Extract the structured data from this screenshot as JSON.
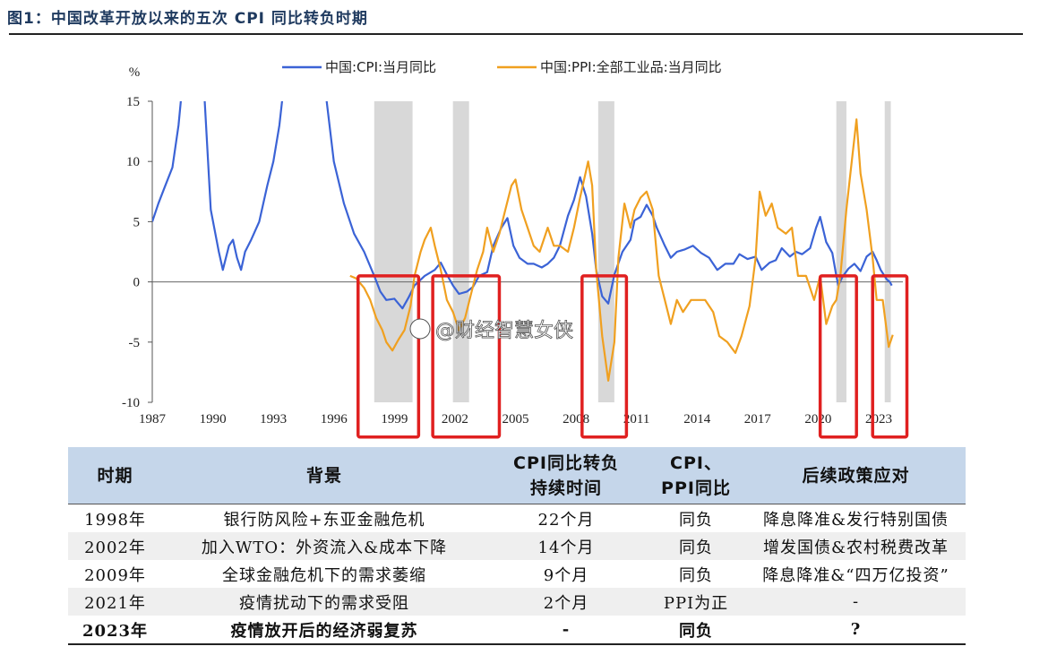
{
  "figure": {
    "title": "图1：中国改革开放以来的五次 CPI 同比转负时期"
  },
  "watermark": "@财经智慧女侠",
  "chart_data": {
    "type": "line",
    "ylabel": "%",
    "ylim": [
      -10,
      15
    ],
    "yticks": [
      15,
      10,
      5,
      0,
      -5,
      -10
    ],
    "xlim": [
      1987,
      2024.2
    ],
    "xticks": [
      1987,
      1990,
      1993,
      1996,
      1999,
      2002,
      2005,
      2008,
      2011,
      2014,
      2017,
      2020,
      2023
    ],
    "legend_position": "top-center",
    "series": [
      {
        "name": "中国:CPI:当月同比",
        "color": "#3b63d6",
        "points": [
          [
            1987.0,
            5.0
          ],
          [
            1987.3,
            6.5
          ],
          [
            1987.6,
            7.8
          ],
          [
            1988.0,
            9.5
          ],
          [
            1988.3,
            13.0
          ],
          [
            1988.5,
            16.5
          ],
          [
            1989.0,
            27.0
          ],
          [
            1989.5,
            18.0
          ],
          [
            1989.9,
            6.0
          ],
          [
            1990.3,
            2.5
          ],
          [
            1990.5,
            1.0
          ],
          [
            1990.8,
            3.0
          ],
          [
            1991.0,
            3.5
          ],
          [
            1991.2,
            2.0
          ],
          [
            1991.4,
            1.0
          ],
          [
            1991.6,
            2.5
          ],
          [
            1991.9,
            3.5
          ],
          [
            1992.3,
            5.0
          ],
          [
            1992.7,
            8.0
          ],
          [
            1993.0,
            10.0
          ],
          [
            1993.3,
            13.0
          ],
          [
            1993.5,
            16.0
          ],
          [
            1994.0,
            22.0
          ],
          [
            1994.8,
            27.5
          ],
          [
            1995.5,
            17.0
          ],
          [
            1996.0,
            10.0
          ],
          [
            1996.5,
            6.5
          ],
          [
            1997.0,
            4.0
          ],
          [
            1997.5,
            2.5
          ],
          [
            1998.0,
            0.5
          ],
          [
            1998.3,
            -0.8
          ],
          [
            1998.6,
            -1.5
          ],
          [
            1999.0,
            -1.4
          ],
          [
            1999.4,
            -2.2
          ],
          [
            1999.7,
            -1.3
          ],
          [
            2000.0,
            -0.3
          ],
          [
            2000.5,
            0.5
          ],
          [
            2001.0,
            1.0
          ],
          [
            2001.3,
            1.6
          ],
          [
            2001.6,
            0.6
          ],
          [
            2001.9,
            -0.3
          ],
          [
            2002.2,
            -1.0
          ],
          [
            2002.6,
            -0.8
          ],
          [
            2002.9,
            -0.4
          ],
          [
            2003.2,
            0.5
          ],
          [
            2003.6,
            0.8
          ],
          [
            2003.9,
            3.0
          ],
          [
            2004.3,
            4.5
          ],
          [
            2004.6,
            5.3
          ],
          [
            2004.9,
            3.0
          ],
          [
            2005.2,
            2.0
          ],
          [
            2005.6,
            1.5
          ],
          [
            2005.9,
            1.5
          ],
          [
            2006.3,
            1.2
          ],
          [
            2006.6,
            1.5
          ],
          [
            2006.9,
            2.0
          ],
          [
            2007.2,
            3.0
          ],
          [
            2007.6,
            5.5
          ],
          [
            2007.9,
            6.8
          ],
          [
            2008.2,
            8.7
          ],
          [
            2008.5,
            7.1
          ],
          [
            2008.8,
            4.0
          ],
          [
            2009.0,
            1.0
          ],
          [
            2009.3,
            -1.2
          ],
          [
            2009.6,
            -1.8
          ],
          [
            2009.9,
            0.6
          ],
          [
            2010.3,
            2.5
          ],
          [
            2010.7,
            3.5
          ],
          [
            2010.9,
            5.1
          ],
          [
            2011.2,
            5.4
          ],
          [
            2011.5,
            6.4
          ],
          [
            2011.8,
            5.5
          ],
          [
            2012.0,
            4.5
          ],
          [
            2012.4,
            3.0
          ],
          [
            2012.7,
            2.0
          ],
          [
            2013.0,
            2.5
          ],
          [
            2013.4,
            2.7
          ],
          [
            2013.8,
            3.0
          ],
          [
            2014.2,
            2.4
          ],
          [
            2014.6,
            2.0
          ],
          [
            2015.0,
            1.0
          ],
          [
            2015.4,
            1.5
          ],
          [
            2015.8,
            1.5
          ],
          [
            2016.1,
            2.3
          ],
          [
            2016.5,
            1.9
          ],
          [
            2016.9,
            2.1
          ],
          [
            2017.2,
            1.0
          ],
          [
            2017.6,
            1.6
          ],
          [
            2017.9,
            1.8
          ],
          [
            2018.2,
            2.8
          ],
          [
            2018.6,
            2.1
          ],
          [
            2018.9,
            2.5
          ],
          [
            2019.2,
            2.3
          ],
          [
            2019.6,
            2.8
          ],
          [
            2019.9,
            4.5
          ],
          [
            2020.1,
            5.4
          ],
          [
            2020.4,
            3.3
          ],
          [
            2020.7,
            2.4
          ],
          [
            2020.9,
            0.5
          ],
          [
            2021.0,
            -0.3
          ],
          [
            2021.2,
            0.4
          ],
          [
            2021.5,
            1.1
          ],
          [
            2021.8,
            1.5
          ],
          [
            2022.1,
            0.9
          ],
          [
            2022.4,
            2.1
          ],
          [
            2022.7,
            2.5
          ],
          [
            2022.9,
            1.8
          ],
          [
            2023.1,
            1.0
          ],
          [
            2023.4,
            0.2
          ],
          [
            2023.55,
            0.0
          ],
          [
            2023.65,
            -0.3
          ]
        ]
      },
      {
        "name": "中国:PPI:全部工业品:当月同比",
        "color": "#f0a020",
        "points": [
          [
            1996.8,
            0.5
          ],
          [
            1997.1,
            0.3
          ],
          [
            1997.5,
            -0.5
          ],
          [
            1997.8,
            -1.5
          ],
          [
            1998.1,
            -3.0
          ],
          [
            1998.4,
            -4.0
          ],
          [
            1998.6,
            -5.0
          ],
          [
            1998.9,
            -5.7
          ],
          [
            1999.2,
            -4.8
          ],
          [
            1999.5,
            -4.0
          ],
          [
            1999.8,
            -2.0
          ],
          [
            2000.0,
            0.5
          ],
          [
            2000.3,
            2.5
          ],
          [
            2000.5,
            3.5
          ],
          [
            2000.8,
            4.5
          ],
          [
            2001.0,
            3.0
          ],
          [
            2001.3,
            1.0
          ],
          [
            2001.6,
            -1.5
          ],
          [
            2001.9,
            -2.5
          ],
          [
            2002.2,
            -4.0
          ],
          [
            2002.5,
            -3.0
          ],
          [
            2002.8,
            -1.0
          ],
          [
            2003.1,
            1.0
          ],
          [
            2003.4,
            2.5
          ],
          [
            2003.6,
            4.5
          ],
          [
            2003.9,
            2.5
          ],
          [
            2004.2,
            4.0
          ],
          [
            2004.5,
            6.0
          ],
          [
            2004.8,
            8.0
          ],
          [
            2005.0,
            8.5
          ],
          [
            2005.3,
            6.0
          ],
          [
            2005.6,
            4.5
          ],
          [
            2005.9,
            3.0
          ],
          [
            2006.2,
            2.5
          ],
          [
            2006.6,
            4.5
          ],
          [
            2006.9,
            3.0
          ],
          [
            2007.2,
            3.0
          ],
          [
            2007.6,
            2.5
          ],
          [
            2007.9,
            4.5
          ],
          [
            2008.2,
            7.0
          ],
          [
            2008.6,
            10.0
          ],
          [
            2008.8,
            8.0
          ],
          [
            2009.0,
            1.0
          ],
          [
            2009.3,
            -4.5
          ],
          [
            2009.6,
            -8.2
          ],
          [
            2009.9,
            -5.0
          ],
          [
            2010.1,
            2.0
          ],
          [
            2010.4,
            6.5
          ],
          [
            2010.7,
            4.5
          ],
          [
            2010.9,
            6.0
          ],
          [
            2011.2,
            7.0
          ],
          [
            2011.5,
            7.5
          ],
          [
            2011.8,
            6.0
          ],
          [
            2012.1,
            0.5
          ],
          [
            2012.4,
            -1.5
          ],
          [
            2012.7,
            -3.5
          ],
          [
            2013.0,
            -1.5
          ],
          [
            2013.3,
            -2.5
          ],
          [
            2013.7,
            -1.5
          ],
          [
            2014.0,
            -1.5
          ],
          [
            2014.4,
            -1.5
          ],
          [
            2014.8,
            -2.5
          ],
          [
            2015.1,
            -4.5
          ],
          [
            2015.5,
            -5.0
          ],
          [
            2015.9,
            -5.9
          ],
          [
            2016.2,
            -4.5
          ],
          [
            2016.6,
            -2.0
          ],
          [
            2016.9,
            2.0
          ],
          [
            2017.1,
            7.5
          ],
          [
            2017.4,
            5.5
          ],
          [
            2017.7,
            6.5
          ],
          [
            2018.0,
            4.5
          ],
          [
            2018.4,
            4.0
          ],
          [
            2018.7,
            4.5
          ],
          [
            2019.0,
            0.5
          ],
          [
            2019.4,
            0.5
          ],
          [
            2019.8,
            -1.5
          ],
          [
            2020.1,
            0.5
          ],
          [
            2020.4,
            -3.5
          ],
          [
            2020.7,
            -2.0
          ],
          [
            2020.9,
            -1.5
          ],
          [
            2021.1,
            0.5
          ],
          [
            2021.4,
            6.0
          ],
          [
            2021.6,
            9.0
          ],
          [
            2021.9,
            13.5
          ],
          [
            2022.1,
            9.0
          ],
          [
            2022.4,
            6.0
          ],
          [
            2022.7,
            2.0
          ],
          [
            2022.9,
            -1.5
          ],
          [
            2023.2,
            -1.5
          ],
          [
            2023.5,
            -5.4
          ],
          [
            2023.7,
            -4.4
          ]
        ]
      }
    ],
    "shaded_periods": [
      [
        1998.0,
        1999.9
      ],
      [
        2001.9,
        2002.7
      ],
      [
        2009.1,
        2009.9
      ],
      [
        2020.9,
        2021.4
      ],
      [
        2023.3,
        2023.6
      ]
    ],
    "highlight_boxes": [
      [
        1997.2,
        2000.2
      ],
      [
        2000.9,
        2004.2
      ],
      [
        2008.3,
        2010.5
      ],
      [
        2020.1,
        2021.9
      ],
      [
        2022.7,
        2024.4
      ]
    ],
    "highlight_y": [
      0.5,
      -10.5
    ],
    "highlight_color": "#e02020",
    "shade_color": "#d8d8d8"
  },
  "table": {
    "headers": [
      "时期",
      "背景",
      "CPI同比转负\n持续时间",
      "CPI、\nPPI同比",
      "后续政策应对"
    ],
    "rows": [
      [
        "1998年",
        "银行防风险+东亚金融危机",
        "22个月",
        "同负",
        "降息降准&发行特别国债"
      ],
      [
        "2002年",
        "加入WTO：外资流入&成本下降",
        "14个月",
        "同负",
        "增发国债&农村税费改革"
      ],
      [
        "2009年",
        "全球金融危机下的需求萎缩",
        "9个月",
        "同负",
        "降息降准&“四万亿投资”"
      ],
      [
        "2021年",
        "疫情扰动下的需求受阻",
        "2个月",
        "PPI为正",
        "-"
      ],
      [
        "2023年",
        "疫情放开后的经济弱复苏",
        "-",
        "同负",
        "?"
      ]
    ]
  }
}
